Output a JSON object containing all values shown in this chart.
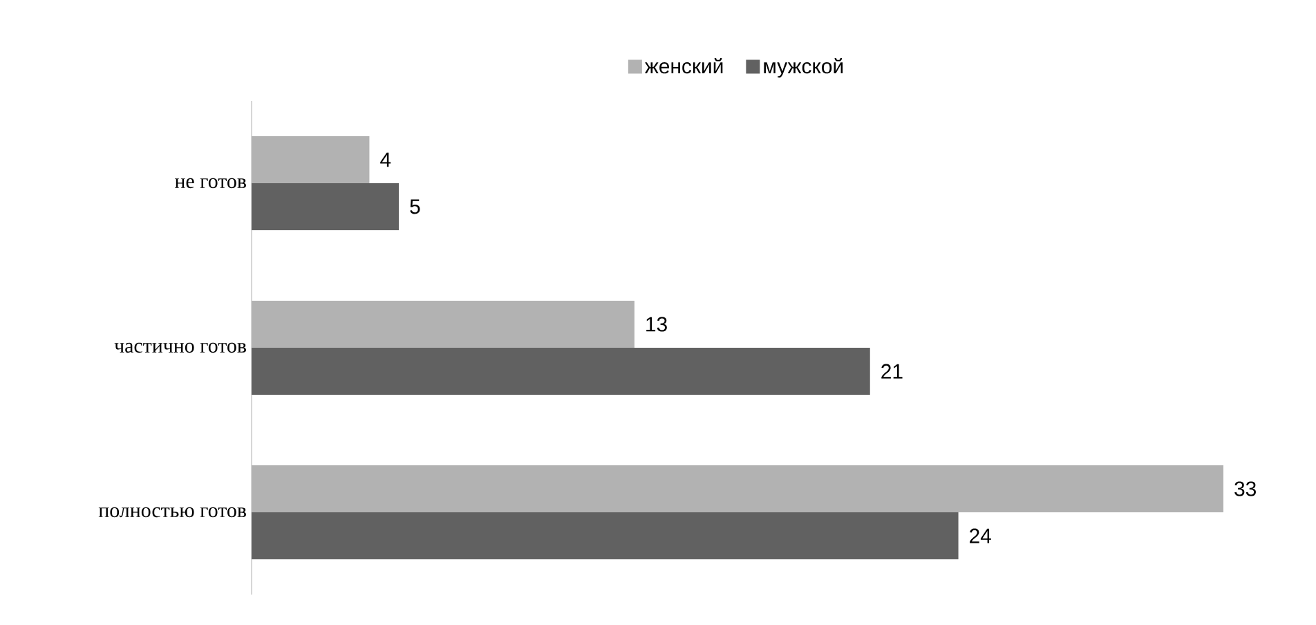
{
  "chart_data": {
    "type": "bar",
    "orientation": "horizontal",
    "categories": [
      "не готов",
      "частично готов",
      "полностью готов"
    ],
    "series": [
      {
        "name": "женский",
        "color": "#b2b2b2",
        "values": [
          4,
          13,
          33
        ]
      },
      {
        "name": "мужской",
        "color": "#616161",
        "values": [
          5,
          21,
          24
        ]
      }
    ],
    "data_labels": true,
    "legend": "top"
  }
}
